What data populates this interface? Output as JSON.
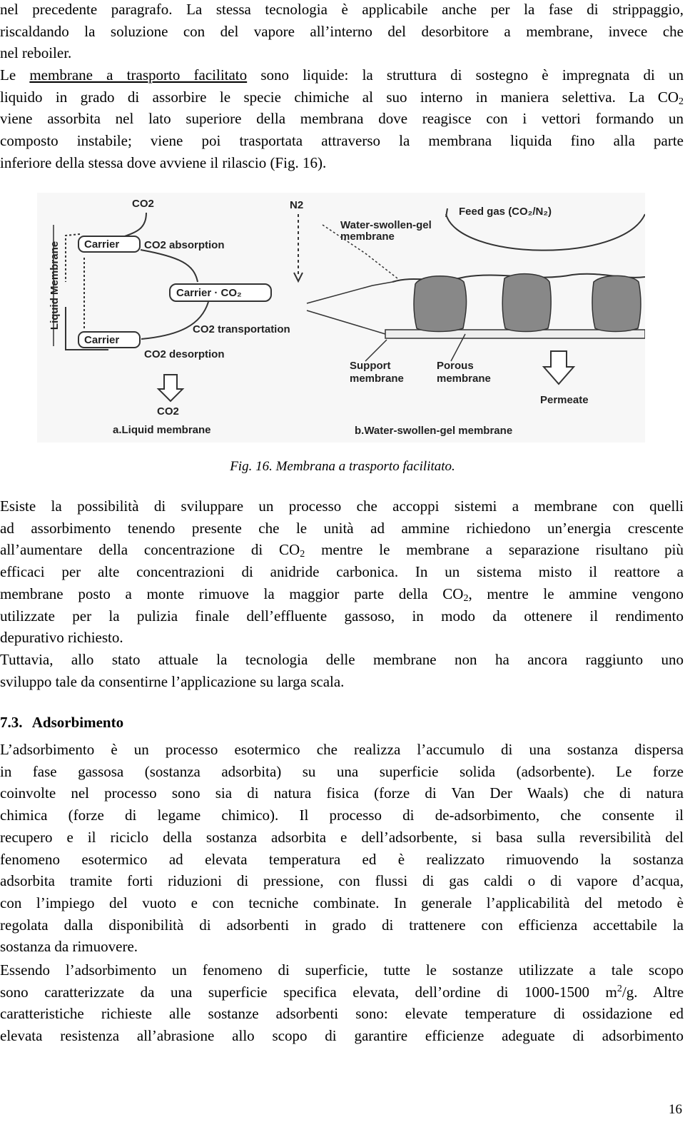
{
  "paragraphs": [
    {
      "lines": [
        [
          "nel precedente paragrafo. La stessa tecnologia è applicabile anche per la fase di strippaggio,"
        ],
        [
          "riscaldando la soluzione con del vapore all’interno del desorbitore a membrane, invece che"
        ],
        [
          "nel reboiler."
        ]
      ]
    },
    {
      "lines": [
        [
          "Le ",
          {
            "u": "membrane a trasporto facilitato"
          },
          " sono liquide: la struttura di sostegno è impregnata di un"
        ],
        [
          "liquido in grado di assorbire le specie chimiche al suo interno in maniera selettiva. La CO",
          {
            "sub": "2"
          }
        ],
        [
          "viene assorbita nel lato superiore della membrana dove reagisce con i vettori formando un"
        ],
        [
          "composto instabile; viene poi trasportata attraverso la membrana liquida fino alla parte"
        ],
        [
          "inferiore della stessa dove avviene il rilascio (Fig. 16)."
        ]
      ]
    },
    {
      "lines": [
        [
          "Esiste la possibilità di sviluppare un processo che accoppi sistemi a membrane con quelli"
        ],
        [
          "ad assorbimento tenendo presente che le unità ad ammine richiedono un’energia crescente"
        ],
        [
          "all’aumentare della concentrazione di CO",
          {
            "sub": "2"
          },
          " mentre le membrane a separazione risultano più"
        ],
        [
          "efficaci per alte concentrazioni di anidride carbonica. In un sistema misto il reattore a"
        ],
        [
          "membrane posto a monte rimuove la maggior parte della CO",
          {
            "sub": "2"
          },
          ", mentre le ammine vengono"
        ],
        [
          "utilizzate per la pulizia finale dell’effluente gassoso, in modo da ottenere il rendimento"
        ],
        [
          "depurativo richiesto."
        ]
      ]
    },
    {
      "lines": [
        [
          "Tuttavia, allo stato attuale la tecnologia delle membrane non ha ancora raggiunto uno"
        ],
        [
          "sviluppo tale da consentirne l’applicazione su larga scala."
        ]
      ]
    },
    {
      "lines": [
        [
          "L’adsorbimento è un processo esotermico che realizza l’accumulo di una sostanza dispersa"
        ],
        [
          "in fase gassosa (sostanza adsorbita) su una superficie solida (adsorbente). Le forze"
        ],
        [
          "coinvolte nel processo sono sia di natura fisica (forze di Van Der Waals) che di natura"
        ],
        [
          "chimica (forze di legame chimico). Il processo di de-adsorbimento, che consente il"
        ],
        [
          "recupero e il riciclo della sostanza adsorbita e dell’adsorbente, si basa sulla reversibilità del"
        ],
        [
          "fenomeno esotermico ad elevata temperatura ed è realizzato rimuovendo la sostanza"
        ],
        [
          "adsorbita tramite forti riduzioni di pressione, con flussi di gas caldi o di vapore d’acqua,"
        ],
        [
          "con l’impiego del vuoto e con tecniche combinate. In generale l’applicabilità del metodo è"
        ],
        [
          "regolata dalla disponibilità di adsorbenti in grado di trattenere con efficienza accettabile la"
        ],
        [
          "sostanza da rimuovere."
        ]
      ]
    },
    {
      "lines": [
        [
          "Essendo l’adsorbimento un fenomeno di superficie, tutte le sostanze utilizzate a tale scopo"
        ],
        [
          "sono caratterizzate da una superficie specifica elevata, dell’ordine di 1000-1500 m",
          {
            "sup": "2"
          },
          "/g. Altre"
        ],
        [
          "caratteristiche richieste alle sostanze adsorbenti sono: elevate temperature di ossidazione ed"
        ],
        [
          "elevata resistenza all’abrasione allo scopo di garantire efficienze adeguate di adsorbimento"
        ]
      ]
    }
  ],
  "figure": {
    "co2_in": "CO2",
    "n2": "N2",
    "carrier_top": "Carrier",
    "absorption": "CO2 absorption",
    "carrier_complex": "Carrier · CO₂",
    "transportation": "CO2 transportation",
    "carrier_bottom": "Carrier",
    "desorption": "CO2 desorption",
    "co2_out": "CO2",
    "liquid_membrane_axis": "Liquid Membrane",
    "caption_a": "a.Liquid membrane",
    "water_gel": [
      "Water-swollen-gel",
      "membrane"
    ],
    "feed_gas": "Feed gas (CO₂/N₂)",
    "support": [
      "Support",
      "membrane"
    ],
    "porous": [
      "Porous",
      "membrane"
    ],
    "permeate": "Permeate",
    "caption_b": "b.Water-swollen-gel membrane"
  },
  "caption": "Fig. 16. Membrana a trasporto facilitato.",
  "heading": {
    "number": "7.3.",
    "title": "Adsorbimento"
  },
  "page_number": "16"
}
